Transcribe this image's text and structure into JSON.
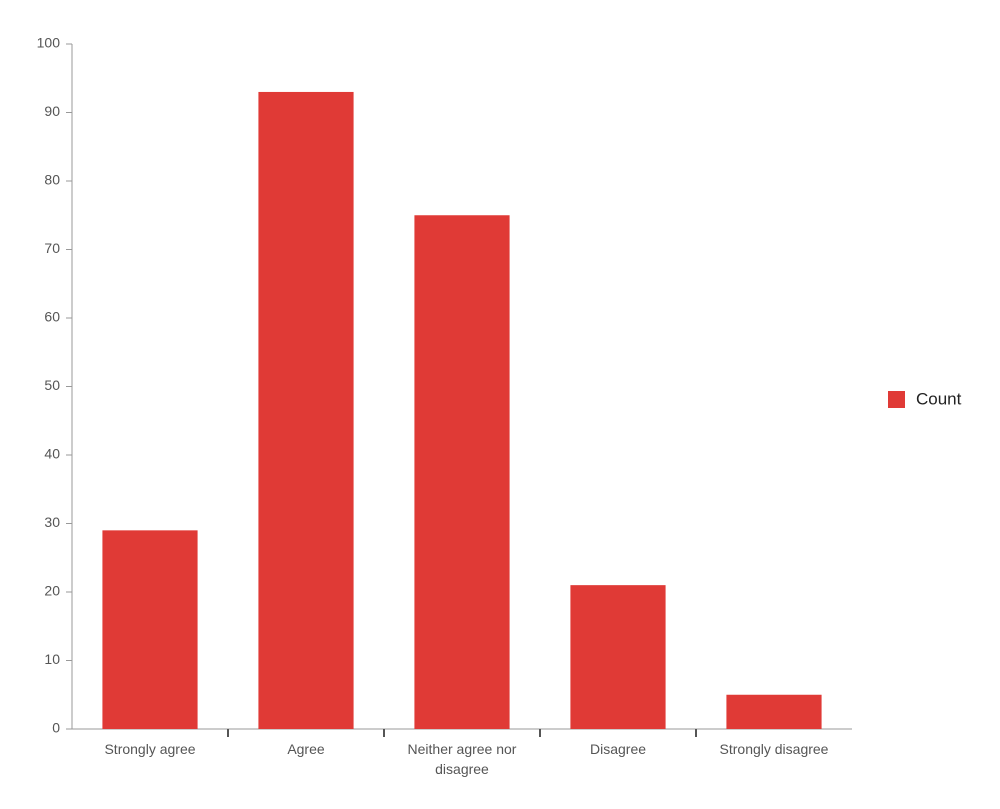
{
  "chart_data": {
    "type": "bar",
    "categories": [
      "Strongly agree",
      "Agree",
      "Neither agree nor disagree",
      "Disagree",
      "Strongly disagree"
    ],
    "series": [
      {
        "name": "Count",
        "color": "#e03a36",
        "values": [
          29,
          93,
          75,
          21,
          5
        ]
      }
    ],
    "ylim": [
      0,
      100
    ],
    "yticks": [
      0,
      10,
      20,
      30,
      40,
      50,
      60,
      70,
      80,
      90,
      100
    ],
    "grid": false,
    "legend": "right"
  }
}
